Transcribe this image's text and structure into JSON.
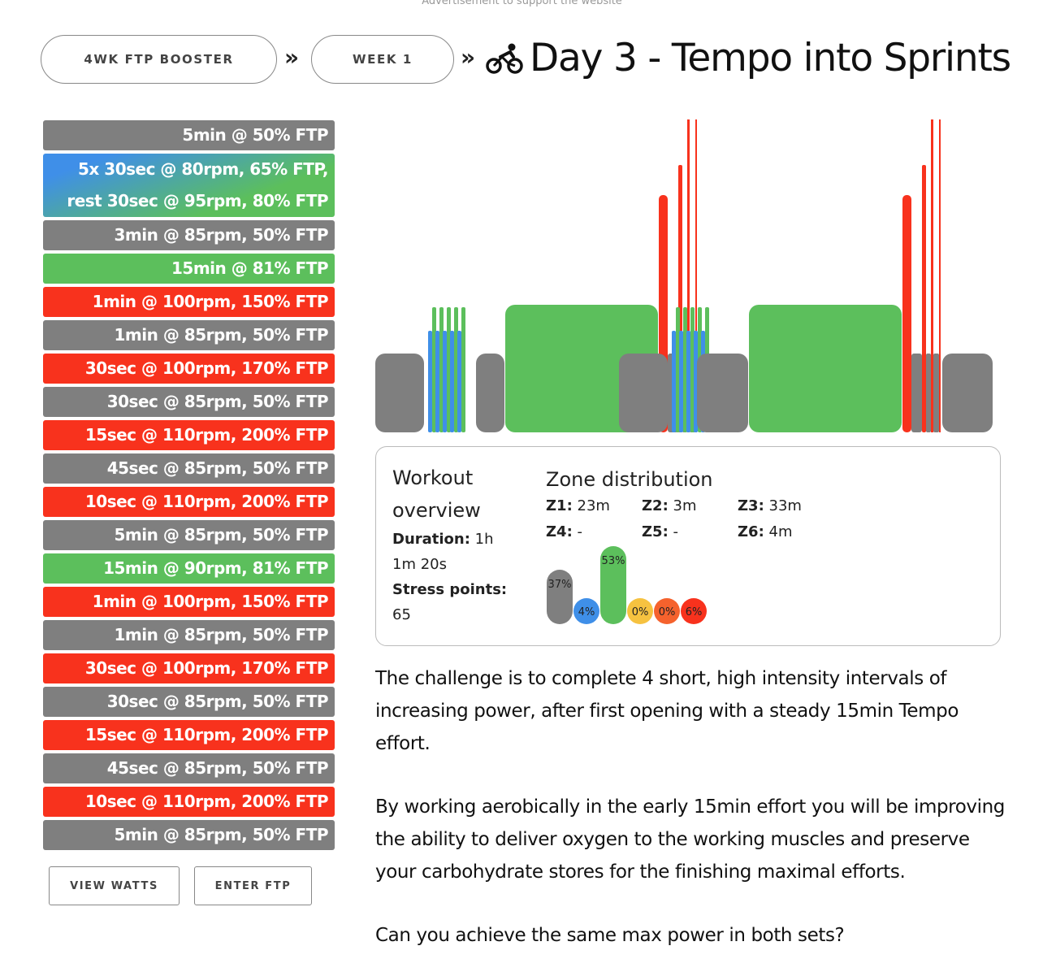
{
  "ad_note": "Advertisement to support the website",
  "breadcrumb": {
    "plan": "4WK FTP BOOSTER",
    "week": "WEEK 1",
    "separator": "»",
    "title": "Day 3 - Tempo into Sprints",
    "title_icon": "bicycle-icon"
  },
  "zone_colors": {
    "Z1": "#7f7f7f",
    "Z2": "#3f8fe8",
    "Z3": "#5cbf5c",
    "Z4": "#f6c240",
    "Z5": "#f5622d",
    "Z6": "#f8321d"
  },
  "intervals": [
    {
      "label": "5min @ 50% FTP",
      "zone": "Z1"
    },
    {
      "label": "5x 30sec @ 80rpm, 65% FTP,",
      "label2": "rest 30sec @ 95rpm, 80% FTP",
      "zone": "Z2-Z3"
    },
    {
      "label": "3min @ 85rpm, 50% FTP",
      "zone": "Z1"
    },
    {
      "label": "15min @ 81% FTP",
      "zone": "Z3"
    },
    {
      "label": "1min @ 100rpm, 150% FTP",
      "zone": "Z6"
    },
    {
      "label": "1min @ 85rpm, 50% FTP",
      "zone": "Z1"
    },
    {
      "label": "30sec @ 100rpm, 170% FTP",
      "zone": "Z6"
    },
    {
      "label": "30sec @ 85rpm, 50% FTP",
      "zone": "Z1"
    },
    {
      "label": "15sec @ 110rpm, 200% FTP",
      "zone": "Z6"
    },
    {
      "label": "45sec @ 85rpm, 50% FTP",
      "zone": "Z1"
    },
    {
      "label": "10sec @ 110rpm, 200% FTP",
      "zone": "Z6"
    },
    {
      "label": "5min @ 85rpm, 50% FTP",
      "zone": "Z1"
    },
    {
      "label": "15min @ 90rpm, 81% FTP",
      "zone": "Z3"
    },
    {
      "label": "1min @ 100rpm, 150% FTP",
      "zone": "Z6"
    },
    {
      "label": "1min @ 85rpm, 50% FTP",
      "zone": "Z1"
    },
    {
      "label": "30sec @ 100rpm, 170% FTP",
      "zone": "Z6"
    },
    {
      "label": "30sec @ 85rpm, 50% FTP",
      "zone": "Z1"
    },
    {
      "label": "15sec @ 110rpm, 200% FTP",
      "zone": "Z6"
    },
    {
      "label": "45sec @ 85rpm, 50% FTP",
      "zone": "Z1"
    },
    {
      "label": "10sec @ 110rpm, 200% FTP",
      "zone": "Z6"
    },
    {
      "label": "5min @ 85rpm, 50% FTP",
      "zone": "Z1"
    }
  ],
  "buttons": {
    "view_watts": "VIEW WATTS",
    "enter_ftp": "ENTER FTP"
  },
  "overview": {
    "heading_line1": "Workout",
    "heading_line2": "overview",
    "duration_label": "Duration:",
    "duration_value_line1": "1h",
    "duration_value_line2": "1m 20s",
    "stress_label": "Stress points:",
    "stress_value": "65"
  },
  "zone_distribution": {
    "heading": "Zone distribution",
    "zones": [
      {
        "label": "Z1:",
        "value": "23m"
      },
      {
        "label": "Z2:",
        "value": "3m"
      },
      {
        "label": "Z3:",
        "value": "33m"
      },
      {
        "label": "Z4:",
        "value": "-"
      },
      {
        "label": "Z5:",
        "value": "-"
      },
      {
        "label": "Z6:",
        "value": "4m"
      }
    ],
    "percents": [
      "37%",
      "4%",
      "53%",
      "0%",
      "0%",
      "6%"
    ]
  },
  "description": [
    "The challenge is to complete 4 short, high intensity intervals of increasing power, after first opening with a steady 15min Tempo effort.",
    "By working aerobically in the early 15min effort you will be improving the ability to deliver oxygen to the working muscles and preserve your carbohydrate stores for the finishing maximal efforts.",
    "Can you achieve the same max power in both sets?"
  ]
}
